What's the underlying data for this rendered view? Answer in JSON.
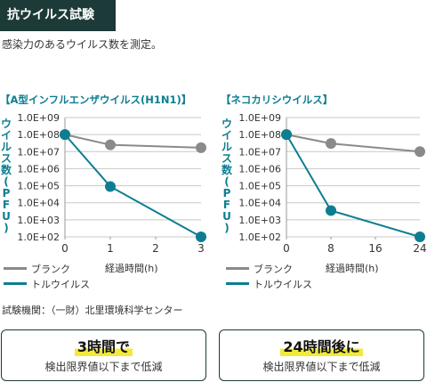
{
  "header": {
    "title": "抗ウイルス試験"
  },
  "intro": "感染力のあるウイルス数を測定。",
  "y_axis_label": [
    "ウ",
    "イ",
    "ル",
    "ス",
    "数",
    "(",
    "P",
    "F",
    "U",
    ")"
  ],
  "chart_data": [
    {
      "type": "line",
      "title": "【A型インフルエンザウイルス(H1N1)】",
      "xlabel": "経過時間(h)",
      "ylabel": "ウイルス数(PFU)",
      "y_scale": "log",
      "ylim": [
        100,
        1000000000
      ],
      "y_ticks": [
        "1.0E+09",
        "1.0E+08",
        "1.0E+07",
        "1.0E+06",
        "1.0E+05",
        "1.0E+04",
        "1.0E+03",
        "1.0E+02"
      ],
      "x_ticks": [
        "0",
        "1",
        "2",
        "3"
      ],
      "xlim": [
        0,
        3
      ],
      "series": [
        {
          "name": "ブランク",
          "color": "#8a8a8a",
          "x": [
            0,
            1,
            3
          ],
          "y": [
            100000000,
            25000000,
            17000000
          ]
        },
        {
          "name": "トルウイルス",
          "color": "#0d7e92",
          "x": [
            0,
            1,
            3
          ],
          "y": [
            100000000,
            90000,
            100
          ]
        }
      ]
    },
    {
      "type": "line",
      "title": "【ネコカリシウイルス】",
      "xlabel": "経過時間(h)",
      "ylabel": "ウイルス数(PFU)",
      "y_scale": "log",
      "ylim": [
        100,
        1000000000
      ],
      "y_ticks": [
        "1.0E+09",
        "1.0E+08",
        "1.0E+07",
        "1.0E+06",
        "1.0E+05",
        "1.0E+04",
        "1.0E+03",
        "1.0E+02"
      ],
      "x_ticks": [
        "0",
        "8",
        "16",
        "24"
      ],
      "xlim": [
        0,
        24
      ],
      "series": [
        {
          "name": "ブランク",
          "color": "#8a8a8a",
          "x": [
            0,
            8,
            24
          ],
          "y": [
            100000000,
            30000000,
            10000000
          ]
        },
        {
          "name": "トルウイルス",
          "color": "#0d7e92",
          "x": [
            0,
            8,
            24
          ],
          "y": [
            100000000,
            3500,
            100
          ]
        }
      ]
    }
  ],
  "legend": {
    "blank": "ブランク",
    "tol": "トルウイルス",
    "blank_color": "#8a8a8a",
    "tol_color": "#0d7e92"
  },
  "xunit": "経過時間(h)",
  "footnote": "試験機関：（一財）北里環境科学センター",
  "results": [
    {
      "big": "3時間で",
      "small": "検出限界値以下まで低減"
    },
    {
      "big": "24時間後に",
      "small": "検出限界値以下まで低減"
    }
  ]
}
